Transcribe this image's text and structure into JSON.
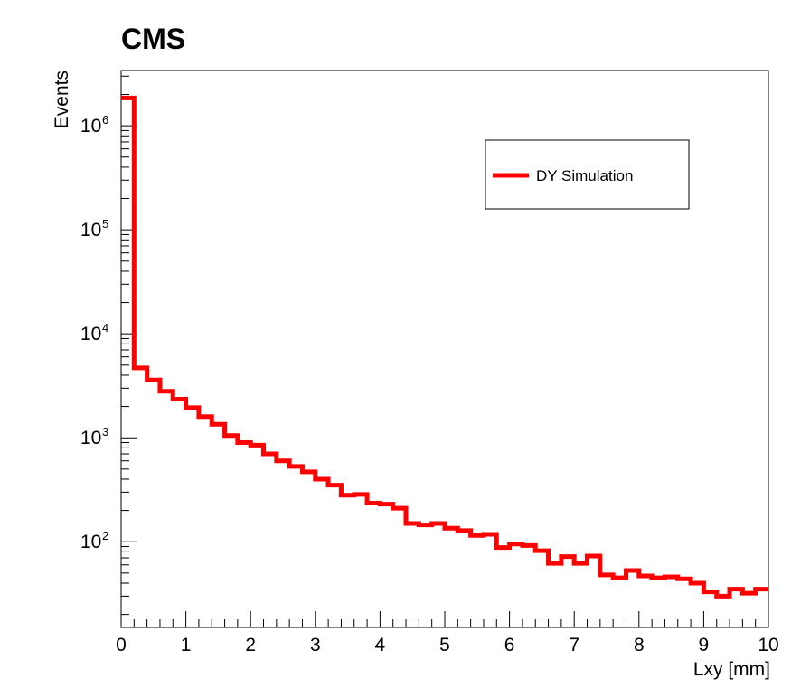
{
  "chart_data": {
    "type": "line",
    "title": "CMS",
    "xlabel": "Lxy [mm]",
    "ylabel": "Events",
    "xlim": [
      0,
      10
    ],
    "ylim": [
      15,
      3400000
    ],
    "yscale": "log",
    "grid": false,
    "legend_position": "top-right",
    "x_ticks": [
      "0",
      "1",
      "2",
      "3",
      "4",
      "5",
      "6",
      "7",
      "8",
      "9",
      "10"
    ],
    "y_ticks": [
      {
        "value": 100,
        "base": "10",
        "exponent": "2"
      },
      {
        "value": 1000,
        "base": "10",
        "exponent": "3"
      },
      {
        "value": 10000,
        "base": "10",
        "exponent": "4"
      },
      {
        "value": 100000,
        "base": "10",
        "exponent": "5"
      },
      {
        "value": 1000000,
        "base": "10",
        "exponent": "6"
      }
    ],
    "bin_edges": [
      0,
      0.2,
      0.4,
      0.6,
      0.8,
      1.0,
      1.2,
      1.4,
      1.6,
      1.8,
      2.0,
      2.2,
      2.4,
      2.6,
      2.8,
      3.0,
      3.2,
      3.4,
      3.6,
      3.8,
      4.0,
      4.2,
      4.4,
      4.6,
      4.8,
      5.0,
      5.2,
      5.4,
      5.6,
      5.8,
      6.0,
      6.2,
      6.4,
      6.6,
      6.8,
      7.0,
      7.2,
      7.4,
      7.6,
      7.8,
      8.0,
      8.2,
      8.4,
      8.6,
      8.8,
      9.0,
      9.2,
      9.4,
      9.6,
      9.8,
      10.0
    ],
    "series": [
      {
        "name": "DY Simulation",
        "color": "#ff0000",
        "values": [
          1850000,
          4700,
          3600,
          2800,
          2350,
          1950,
          1600,
          1350,
          1050,
          900,
          850,
          700,
          600,
          530,
          470,
          400,
          350,
          280,
          285,
          235,
          230,
          210,
          150,
          145,
          150,
          135,
          128,
          115,
          118,
          88,
          95,
          92,
          82,
          62,
          72,
          62,
          73,
          48,
          45,
          53,
          47,
          45,
          46,
          44,
          40,
          33,
          30,
          35,
          32,
          35
        ]
      }
    ]
  }
}
